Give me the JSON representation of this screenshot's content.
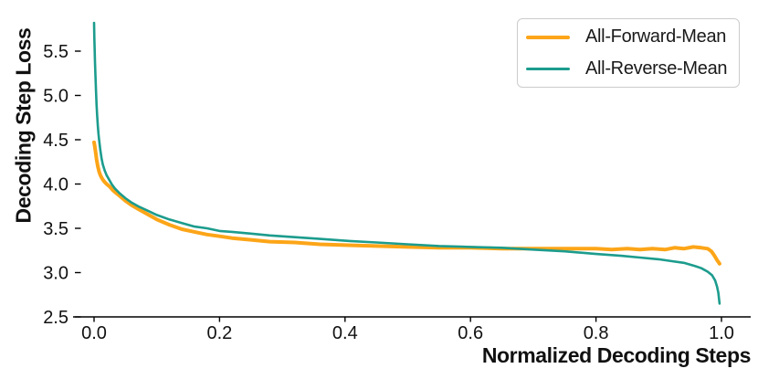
{
  "chart_data": {
    "type": "line",
    "title": "",
    "xlabel": "Normalized Decoding Steps",
    "ylabel": "Decoding Step Loss",
    "xlim": [
      -0.034,
      1.047
    ],
    "ylim": [
      2.5,
      5.95
    ],
    "xticks": [
      0.0,
      0.2,
      0.4,
      0.6,
      0.8,
      1.0
    ],
    "yticks": [
      2.5,
      3.0,
      3.5,
      4.0,
      4.5,
      5.0,
      5.5
    ],
    "grid": false,
    "legend_position": "upper right",
    "axis_color": "#000000",
    "legend_border_color": "#cccccc",
    "series": [
      {
        "name": "All-Forward-Mean",
        "color": "#FCA518",
        "line_width": 4,
        "points": [
          [
            0.0,
            4.47
          ],
          [
            0.001,
            4.43
          ],
          [
            0.002,
            4.38
          ],
          [
            0.003,
            4.33
          ],
          [
            0.004,
            4.28
          ],
          [
            0.005,
            4.24
          ],
          [
            0.006,
            4.2
          ],
          [
            0.008,
            4.14
          ],
          [
            0.01,
            4.1
          ],
          [
            0.013,
            4.06
          ],
          [
            0.016,
            4.03
          ],
          [
            0.02,
            4.0
          ],
          [
            0.025,
            3.97
          ],
          [
            0.03,
            3.93
          ],
          [
            0.035,
            3.9
          ],
          [
            0.04,
            3.87
          ],
          [
            0.05,
            3.81
          ],
          [
            0.06,
            3.76
          ],
          [
            0.07,
            3.72
          ],
          [
            0.085,
            3.66
          ],
          [
            0.1,
            3.6
          ],
          [
            0.12,
            3.54
          ],
          [
            0.14,
            3.49
          ],
          [
            0.16,
            3.46
          ],
          [
            0.18,
            3.43
          ],
          [
            0.2,
            3.41
          ],
          [
            0.22,
            3.39
          ],
          [
            0.25,
            3.37
          ],
          [
            0.28,
            3.35
          ],
          [
            0.32,
            3.34
          ],
          [
            0.36,
            3.32
          ],
          [
            0.4,
            3.31
          ],
          [
            0.45,
            3.3
          ],
          [
            0.5,
            3.29
          ],
          [
            0.55,
            3.28
          ],
          [
            0.6,
            3.28
          ],
          [
            0.65,
            3.27
          ],
          [
            0.7,
            3.27
          ],
          [
            0.75,
            3.27
          ],
          [
            0.8,
            3.27
          ],
          [
            0.825,
            3.26
          ],
          [
            0.85,
            3.27
          ],
          [
            0.87,
            3.26
          ],
          [
            0.89,
            3.27
          ],
          [
            0.91,
            3.26
          ],
          [
            0.925,
            3.28
          ],
          [
            0.94,
            3.27
          ],
          [
            0.955,
            3.29
          ],
          [
            0.968,
            3.28
          ],
          [
            0.978,
            3.27
          ],
          [
            0.984,
            3.24
          ],
          [
            0.989,
            3.19
          ],
          [
            0.993,
            3.14
          ],
          [
            0.996,
            3.11
          ],
          [
            0.997,
            3.1
          ]
        ]
      },
      {
        "name": "All-Reverse-Mean",
        "color": "#1C9C8D",
        "line_width": 2.6,
        "points": [
          [
            0.0,
            5.82
          ],
          [
            0.0005,
            5.65
          ],
          [
            0.001,
            5.5
          ],
          [
            0.0015,
            5.38
          ],
          [
            0.002,
            5.26
          ],
          [
            0.003,
            5.06
          ],
          [
            0.004,
            4.9
          ],
          [
            0.005,
            4.77
          ],
          [
            0.006,
            4.66
          ],
          [
            0.007,
            4.57
          ],
          [
            0.008,
            4.5
          ],
          [
            0.01,
            4.38
          ],
          [
            0.012,
            4.29
          ],
          [
            0.014,
            4.22
          ],
          [
            0.017,
            4.15
          ],
          [
            0.02,
            4.1
          ],
          [
            0.024,
            4.05
          ],
          [
            0.028,
            4.0
          ],
          [
            0.033,
            3.95
          ],
          [
            0.04,
            3.9
          ],
          [
            0.05,
            3.84
          ],
          [
            0.06,
            3.79
          ],
          [
            0.07,
            3.75
          ],
          [
            0.085,
            3.7
          ],
          [
            0.1,
            3.65
          ],
          [
            0.12,
            3.6
          ],
          [
            0.14,
            3.56
          ],
          [
            0.16,
            3.52
          ],
          [
            0.18,
            3.5
          ],
          [
            0.2,
            3.47
          ],
          [
            0.22,
            3.46
          ],
          [
            0.25,
            3.44
          ],
          [
            0.28,
            3.42
          ],
          [
            0.32,
            3.4
          ],
          [
            0.36,
            3.38
          ],
          [
            0.4,
            3.36
          ],
          [
            0.45,
            3.34
          ],
          [
            0.5,
            3.32
          ],
          [
            0.55,
            3.3
          ],
          [
            0.6,
            3.29
          ],
          [
            0.65,
            3.28
          ],
          [
            0.7,
            3.26
          ],
          [
            0.75,
            3.24
          ],
          [
            0.8,
            3.21
          ],
          [
            0.84,
            3.19
          ],
          [
            0.87,
            3.17
          ],
          [
            0.9,
            3.15
          ],
          [
            0.92,
            3.13
          ],
          [
            0.94,
            3.11
          ],
          [
            0.955,
            3.08
          ],
          [
            0.968,
            3.05
          ],
          [
            0.978,
            3.01
          ],
          [
            0.985,
            2.97
          ],
          [
            0.99,
            2.91
          ],
          [
            0.993,
            2.84
          ],
          [
            0.995,
            2.77
          ],
          [
            0.997,
            2.65
          ]
        ]
      }
    ]
  }
}
